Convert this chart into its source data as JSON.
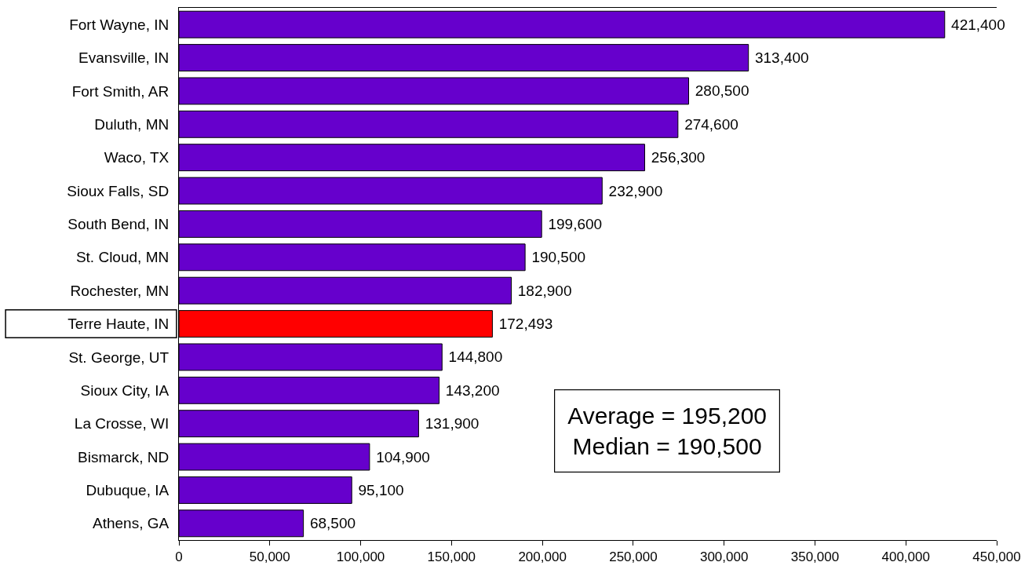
{
  "chart_data": {
    "type": "bar",
    "orientation": "horizontal",
    "categories": [
      "Fort Wayne, IN",
      "Evansville, IN",
      "Fort Smith, AR",
      "Duluth, MN",
      "Waco, TX",
      "Sioux Falls, SD",
      "South Bend, IN",
      "St. Cloud, MN",
      "Rochester, MN",
      "Terre Haute, IN",
      "St. George, UT",
      "Sioux City, IA",
      "La Crosse, WI",
      "Bismarck, ND",
      "Dubuque, IA",
      "Athens, GA"
    ],
    "values": [
      421400,
      313400,
      280500,
      274600,
      256300,
      232900,
      199600,
      190500,
      182900,
      172493,
      144800,
      143200,
      131900,
      104900,
      95100,
      68500
    ],
    "colors": [
      "#6600cc",
      "#6600cc",
      "#6600cc",
      "#6600cc",
      "#6600cc",
      "#6600cc",
      "#6600cc",
      "#6600cc",
      "#6600cc",
      "#ff0000",
      "#6600cc",
      "#6600cc",
      "#6600cc",
      "#6600cc",
      "#6600cc",
      "#6600cc"
    ],
    "value_labels": [
      "421,400",
      "313,400",
      "280,500",
      "274,600",
      "256,300",
      "232,900",
      "199,600",
      "190,500",
      "182,900",
      "172,493",
      "144,800",
      "143,200",
      "131,900",
      "104,900",
      "95,100",
      "68,500"
    ],
    "xlim": [
      0,
      450000
    ],
    "xticks": [
      0,
      {
        "value": 50000,
        "label": "50,000"
      },
      {
        "value": 100000,
        "label": "100,000"
      },
      {
        "value": 150000,
        "label": "150,000"
      },
      {
        "value": 200000,
        "label": "200,000"
      },
      {
        "value": 250000,
        "label": "250,000"
      },
      {
        "value": 300000,
        "label": "300,000"
      },
      {
        "value": 350000,
        "label": "350,000"
      },
      {
        "value": 400000,
        "label": "400,000"
      },
      {
        "value": 450000,
        "label": "450,000"
      }
    ],
    "annotations": [
      "Average = 195,200",
      "Median = 190,500"
    ]
  }
}
